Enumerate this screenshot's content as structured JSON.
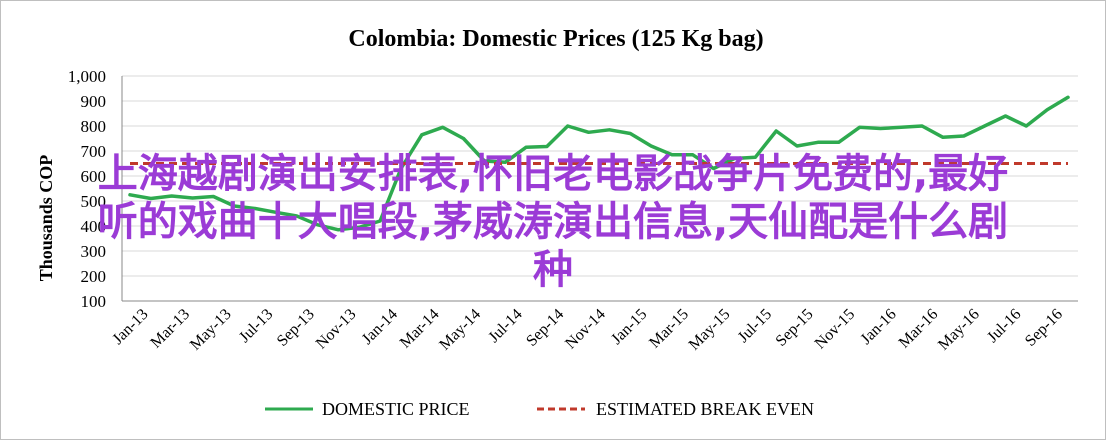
{
  "chart_data": {
    "type": "line",
    "title": "Colombia:  Domestic Prices (125 Kg bag)",
    "ylabel": "Thousands COP",
    "xlabel": "",
    "ylim": [
      100,
      1000
    ],
    "yticks": [
      100,
      200,
      300,
      400,
      500,
      600,
      700,
      800,
      900,
      1000
    ],
    "ytick_labels": [
      "100",
      "200",
      "300",
      "400",
      "500",
      "600",
      "700",
      "800",
      "900",
      "1,000"
    ],
    "x_tick_labels": [
      "Jan-13",
      "Mar-13",
      "May-13",
      "Jul-13",
      "Sep-13",
      "Nov-13",
      "Jan-14",
      "Mar-14",
      "May-14",
      "Jul-14",
      "Sep-14",
      "Nov-14",
      "Jan-15",
      "Mar-15",
      "May-15",
      "Jul-15",
      "Sep-15",
      "Nov-15",
      "Jan-16",
      "Mar-16",
      "May-16",
      "Jul-16",
      "Sep-16"
    ],
    "grid": true,
    "legend_position": "bottom",
    "series": [
      {
        "name": "DOMESTIC PRICE",
        "color": "#2eaa4f",
        "style": "solid",
        "values": [
          525,
          510,
          520,
          512,
          518,
          480,
          470,
          455,
          440,
          405,
          385,
          395,
          420,
          630,
          765,
          795,
          750,
          660,
          655,
          715,
          718,
          800,
          775,
          785,
          770,
          720,
          685,
          685,
          630,
          670,
          675,
          780,
          720,
          735,
          735,
          795,
          790,
          795,
          800,
          755,
          760,
          800,
          840,
          800,
          865,
          915
        ]
      },
      {
        "name": "ESTIMATED BREAK EVEN",
        "color": "#c0392b",
        "style": "dashed",
        "values": [
          650,
          650,
          650,
          650,
          650,
          650,
          650,
          650,
          650,
          650,
          650,
          650,
          650,
          650,
          650,
          650,
          650,
          650,
          650,
          650,
          650,
          650,
          650,
          650,
          650,
          650,
          650,
          650,
          650,
          650,
          650,
          650,
          650,
          650,
          650,
          650,
          650,
          650,
          650,
          650,
          650,
          650,
          650,
          650,
          650,
          650
        ]
      }
    ]
  },
  "overlay": {
    "lines": [
      "上海越剧演出安排表,怀旧老电影战争片免费的,最好",
      "听的戏曲十大唱段,茅威涛演出信息,天仙配是什么剧",
      "种"
    ]
  }
}
